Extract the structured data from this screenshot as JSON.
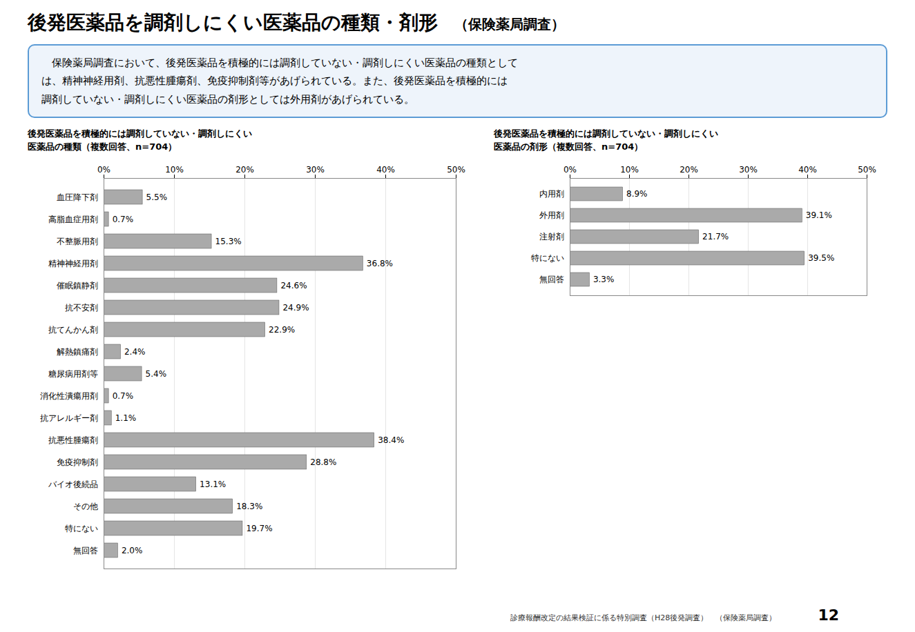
{
  "title": "後発医薬品を調剤しにくい医薬品の種類・剤形",
  "subtitle": "（保険薬局調査）",
  "description": [
    "　保険薬局調査において、後発医薬品を積極的には調剤していない・調剤しにくい医薬品の種類として",
    "は、精神神経用剤、抗悪性腫瘍剤、免疫抑制剤等があげられている。また、後発医薬品を積極的には",
    "調剤していない・調剤しにくい医薬品の剤形としては外用剤があげられている。"
  ],
  "footer": "診療報酬改定の結果検証に係る特別調査（H28後発調査）　（保険薬局調査）",
  "page_number": "12",
  "chart_data": [
    {
      "type": "bar",
      "orientation": "horizontal",
      "title": [
        "後発医薬品を積極的には調剤していない・調剤しにくい",
        "医薬品の種類（複数回答、n=704）"
      ],
      "categories": [
        "血圧降下剤",
        "高脂血症用剤",
        "不整脈用剤",
        "精神神経用剤",
        "催眠鎮静剤",
        "抗不安剤",
        "抗てんかん剤",
        "解熱鎮痛剤",
        "糖尿病用剤等",
        "消化性潰瘍用剤",
        "抗アレルギー剤",
        "抗悪性腫瘍剤",
        "免疫抑制剤",
        "バイオ後続品",
        "その他",
        "特にない",
        "無回答"
      ],
      "values": [
        5.5,
        0.7,
        15.3,
        36.8,
        24.6,
        24.9,
        22.9,
        2.4,
        5.4,
        0.7,
        1.1,
        38.4,
        28.8,
        13.1,
        18.3,
        19.7,
        2.0
      ],
      "value_labels": [
        "5.5%",
        "0.7%",
        "15.3%",
        "36.8%",
        "24.6%",
        "24.9%",
        "22.9%",
        "2.4%",
        "5.4%",
        "0.7%",
        "1.1%",
        "38.4%",
        "28.8%",
        "13.1%",
        "18.3%",
        "19.7%",
        "2.0%"
      ],
      "color": "#aaaaaa",
      "xlim": [
        0,
        50
      ],
      "xticks": [
        {
          "value": 0,
          "label": "0%"
        },
        {
          "value": 10,
          "label": "10%"
        },
        {
          "value": 20,
          "label": "20%"
        },
        {
          "value": 30,
          "label": "30%"
        },
        {
          "value": 40,
          "label": "40%"
        },
        {
          "value": 50,
          "label": "50%"
        }
      ],
      "grid": true,
      "data_labels": true
    },
    {
      "type": "bar",
      "orientation": "horizontal",
      "title": [
        "後発医薬品を積極的には調剤していない・調剤しにくい",
        "医薬品の剤形（複数回答、n=704）"
      ],
      "categories": [
        "内用剤",
        "外用剤",
        "注射剤",
        "特にない",
        "無回答"
      ],
      "values": [
        8.9,
        39.1,
        21.7,
        39.5,
        3.3
      ],
      "value_labels": [
        "8.9%",
        "39.1%",
        "21.7%",
        "39.5%",
        "3.3%"
      ],
      "color": "#aaaaaa",
      "xlim": [
        0,
        50
      ],
      "xticks": [
        {
          "value": 0,
          "label": "0%"
        },
        {
          "value": 10,
          "label": "10%"
        },
        {
          "value": 20,
          "label": "20%"
        },
        {
          "value": 30,
          "label": "30%"
        },
        {
          "value": 40,
          "label": "40%"
        },
        {
          "value": 50,
          "label": "50%"
        }
      ],
      "grid": true,
      "data_labels": true
    }
  ]
}
